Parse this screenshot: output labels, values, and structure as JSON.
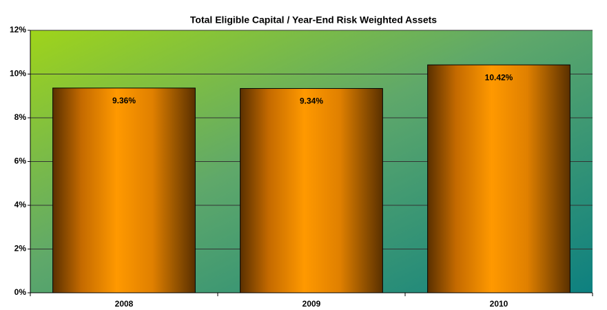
{
  "chart_data": {
    "type": "bar",
    "title": "Total Eligible Capital / Year-End Risk Weighted Assets",
    "categories": [
      "2008",
      "2009",
      "2010"
    ],
    "values": [
      9.36,
      9.34,
      10.42
    ],
    "value_labels": [
      "9.36%",
      "9.34%",
      "10.42%"
    ],
    "ylim": [
      0,
      12
    ],
    "yticks": [
      {
        "value": 0,
        "label": "0%"
      },
      {
        "value": 2,
        "label": "2%"
      },
      {
        "value": 4,
        "label": "4%"
      },
      {
        "value": 6,
        "label": "6%"
      },
      {
        "value": 8,
        "label": "8%"
      },
      {
        "value": 10,
        "label": "10%"
      },
      {
        "value": 12,
        "label": "12%"
      }
    ],
    "grid": true
  }
}
